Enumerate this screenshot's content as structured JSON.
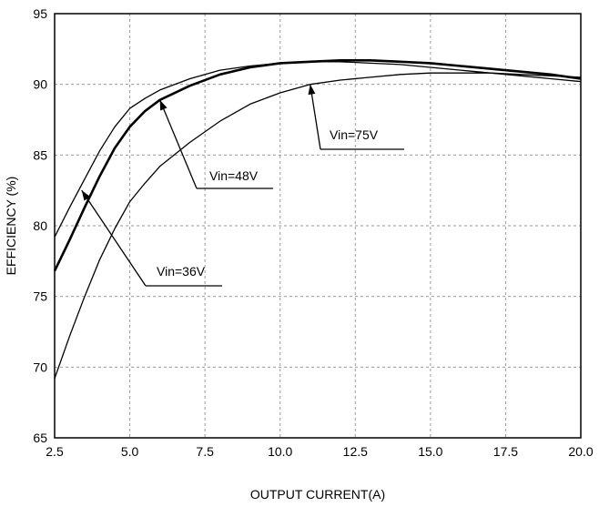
{
  "chart_data": {
    "type": "line",
    "xlabel": "OUTPUT CURRENT(A)",
    "ylabel": "EFFICIENCY (%)",
    "xlim": [
      2.5,
      20.0
    ],
    "ylim": [
      65,
      95
    ],
    "xticks": [
      "2.5",
      "5.0",
      "7.5",
      "10.0",
      "12.5",
      "15.0",
      "17.5",
      "20.0"
    ],
    "yticks": [
      "65",
      "70",
      "75",
      "80",
      "85",
      "90",
      "95"
    ],
    "grid": true,
    "series": [
      {
        "name": "Vin=36V",
        "line_width": 1.3,
        "x": [
          2.5,
          3.0,
          3.5,
          4.0,
          4.5,
          5.0,
          5.5,
          6.0,
          7.0,
          8.0,
          9.0,
          10.0,
          11.0,
          12.0,
          13.0,
          14.0,
          15.0,
          16.0,
          17.0,
          18.0,
          19.0,
          20.0
        ],
        "y": [
          79.2,
          81.3,
          83.3,
          85.3,
          87.0,
          88.3,
          89.0,
          89.6,
          90.4,
          91.0,
          91.3,
          91.5,
          91.6,
          91.6,
          91.5,
          91.4,
          91.2,
          91.0,
          90.8,
          90.6,
          90.4,
          90.2
        ]
      },
      {
        "name": "Vin=48V",
        "line_width": 2.6,
        "x": [
          2.5,
          3.0,
          3.5,
          4.0,
          4.5,
          5.0,
          5.5,
          6.0,
          7.0,
          8.0,
          9.0,
          10.0,
          11.0,
          12.0,
          13.0,
          14.0,
          15.0,
          16.0,
          17.0,
          18.0,
          19.0,
          20.0
        ],
        "y": [
          76.8,
          79.0,
          81.3,
          83.5,
          85.5,
          87.0,
          88.1,
          88.9,
          89.9,
          90.7,
          91.2,
          91.5,
          91.6,
          91.7,
          91.7,
          91.6,
          91.5,
          91.3,
          91.1,
          90.9,
          90.7,
          90.4
        ]
      },
      {
        "name": "Vin=75V",
        "line_width": 1.3,
        "x": [
          2.5,
          3.0,
          3.5,
          4.0,
          4.5,
          5.0,
          5.5,
          6.0,
          7.0,
          8.0,
          9.0,
          10.0,
          11.0,
          12.0,
          13.0,
          14.0,
          15.0,
          16.0,
          17.0,
          18.0,
          19.0,
          20.0
        ],
        "y": [
          69.2,
          72.2,
          75.0,
          77.6,
          79.8,
          81.7,
          83.0,
          84.2,
          85.9,
          87.4,
          88.6,
          89.4,
          90.0,
          90.3,
          90.5,
          90.7,
          90.8,
          90.8,
          90.8,
          90.7,
          90.6,
          90.5
        ]
      }
    ],
    "annotations": [
      {
        "text": "Vin=75V",
        "series": "Vin=75V",
        "arrow_to": [
          11.0,
          90.0
        ]
      },
      {
        "text": "Vin=48V",
        "series": "Vin=48V",
        "arrow_to": [
          6.0,
          88.9
        ]
      },
      {
        "text": "Vin=36V",
        "series": "Vin=36V",
        "arrow_to": [
          3.4,
          82.5
        ]
      }
    ]
  }
}
